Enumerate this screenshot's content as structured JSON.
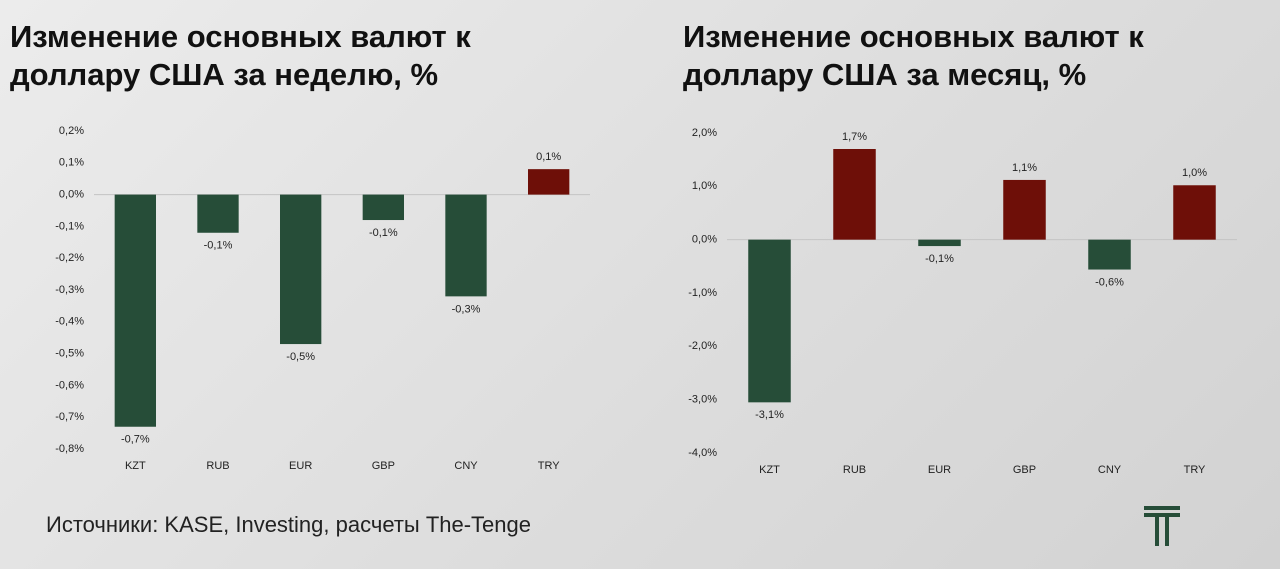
{
  "chart_data": [
    {
      "type": "bar",
      "title": "Изменение основных валют к доллару США за неделю, %",
      "categories": [
        "KZT",
        "RUB",
        "EUR",
        "GBP",
        "CNY",
        "TRY"
      ],
      "values": [
        -0.73,
        -0.12,
        -0.47,
        -0.08,
        -0.32,
        0.08
      ],
      "value_labels": [
        "-0,7%",
        "-0,1%",
        "-0,5%",
        "-0,1%",
        "-0,3%",
        "0,1%"
      ],
      "colors": [
        "#264d38",
        "#264d38",
        "#264d38",
        "#264d38",
        "#264d38",
        "#6e0f08"
      ],
      "ylim": [
        -0.8,
        0.2
      ],
      "yticks": [
        {
          "value": 0.2,
          "label": "0,2%"
        },
        {
          "value": 0.1,
          "label": "0,1%"
        },
        {
          "value": 0,
          "label": "0,0%"
        },
        {
          "value": -0.1,
          "label": "-0,1%"
        },
        {
          "value": -0.2,
          "label": "-0,2%"
        },
        {
          "value": -0.3,
          "label": "-0,3%"
        },
        {
          "value": -0.4,
          "label": "-0,4%"
        },
        {
          "value": -0.5,
          "label": "-0,5%"
        },
        {
          "value": -0.6,
          "label": "-0,6%"
        },
        {
          "value": -0.7,
          "label": "-0,7%"
        },
        {
          "value": -0.8,
          "label": "-0,8%"
        }
      ],
      "grid": false
    },
    {
      "type": "bar",
      "title": "Изменение основных валют к доллару США за месяц, %",
      "categories": [
        "KZT",
        "RUB",
        "EUR",
        "GBP",
        "CNY",
        "TRY"
      ],
      "values": [
        -3.05,
        1.7,
        -0.12,
        1.12,
        -0.56,
        1.02
      ],
      "value_labels": [
        "-3,1%",
        "1,7%",
        "-0,1%",
        "1,1%",
        "-0,6%",
        "1,0%"
      ],
      "colors": [
        "#264d38",
        "#6e0f08",
        "#264d38",
        "#6e0f08",
        "#264d38",
        "#6e0f08"
      ],
      "ylim": [
        -4,
        2
      ],
      "yticks": [
        {
          "value": 2,
          "label": "2,0%"
        },
        {
          "value": 1,
          "label": "1,0%"
        },
        {
          "value": 0,
          "label": "0,0%"
        },
        {
          "value": -1,
          "label": "-1,0%"
        },
        {
          "value": -2,
          "label": "-2,0%"
        },
        {
          "value": -3,
          "label": "-3,0%"
        },
        {
          "value": -4,
          "label": "-4,0%"
        }
      ],
      "grid": false
    }
  ],
  "source": "Источники: KASE, Investing, расчеты The-Tenge"
}
